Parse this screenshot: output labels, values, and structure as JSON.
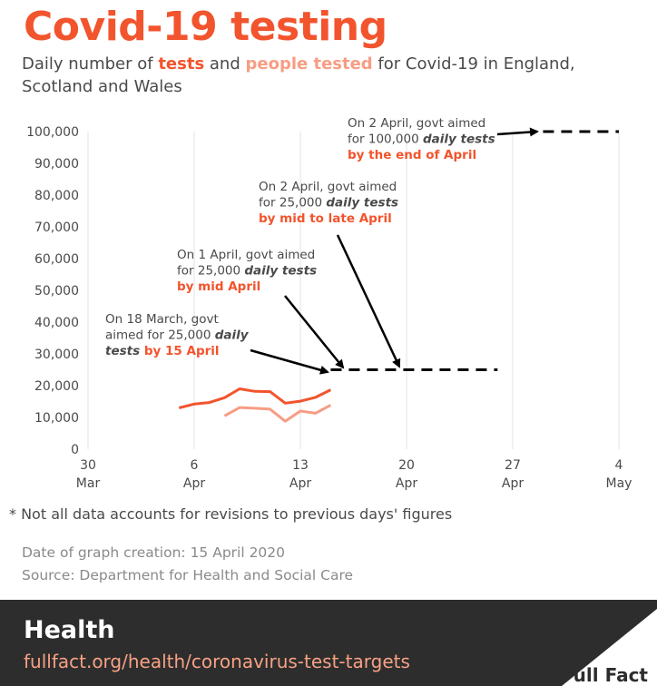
{
  "header": {
    "title": "Covid-19 testing",
    "subtitle_pre": "Daily number of ",
    "subtitle_tests": "tests",
    "subtitle_mid": " and ",
    "subtitle_people": "people tested",
    "subtitle_post": " for Covid-19 in England, Scotland and Wales"
  },
  "colors": {
    "tests": "#f2542d",
    "people_tested": "#f79d84",
    "target": "#000000",
    "footer_bg": "#2d2d2d",
    "url": "#f7a184"
  },
  "chart_data": {
    "type": "line",
    "title": "Covid-19 testing",
    "ylim": [
      0,
      100000
    ],
    "yticks": [
      0,
      10000,
      20000,
      30000,
      40000,
      50000,
      60000,
      70000,
      80000,
      90000,
      100000
    ],
    "ytick_labels": [
      "0",
      "10,000",
      "20,000",
      "30,000",
      "40,000",
      "50,000",
      "60,000",
      "70,000",
      "80,000",
      "90,000",
      "100,000"
    ],
    "xlim": [
      "2020-03-30",
      "2020-05-04"
    ],
    "xticks": [
      {
        "date": "2020-03-30",
        "line1": "30",
        "line2": "Mar"
      },
      {
        "date": "2020-04-06",
        "line1": "6",
        "line2": "Apr"
      },
      {
        "date": "2020-04-13",
        "line1": "13",
        "line2": "Apr"
      },
      {
        "date": "2020-04-20",
        "line1": "20",
        "line2": "Apr"
      },
      {
        "date": "2020-04-27",
        "line1": "27",
        "line2": "Apr"
      },
      {
        "date": "2020-05-04",
        "line1": "4",
        "line2": "May"
      }
    ],
    "grid": "vertical",
    "series": [
      {
        "name": "tests",
        "x": [
          "2020-04-05",
          "2020-04-06",
          "2020-04-07",
          "2020-04-08",
          "2020-04-09",
          "2020-04-10",
          "2020-04-11",
          "2020-04-12",
          "2020-04-13",
          "2020-04-14",
          "2020-04-15"
        ],
        "values": [
          13000,
          14200,
          14700,
          16200,
          19000,
          18200,
          18100,
          14500,
          15100,
          16300,
          18700
        ]
      },
      {
        "name": "people tested",
        "x": [
          "2020-04-08",
          "2020-04-09",
          "2020-04-10",
          "2020-04-11",
          "2020-04-12",
          "2020-04-13",
          "2020-04-14",
          "2020-04-15"
        ],
        "values": [
          10500,
          13100,
          12900,
          12600,
          8800,
          12000,
          11300,
          13900
        ]
      }
    ],
    "targets": [
      {
        "start": "2020-04-15",
        "end": "2020-04-26",
        "value": 25000
      },
      {
        "start": "2020-04-29",
        "end": "2020-05-04",
        "value": 100000
      }
    ],
    "annotations": [
      {
        "plain": [
          "On 18 March, govt",
          "aimed for 25,000 "
        ],
        "emph_bold_italic": "daily",
        "line3_bi": "tests",
        "highlight": " by 15 April"
      },
      {
        "plain": [
          "On 1 April, govt aimed",
          "for 25,000 "
        ],
        "emph_bold_italic": "daily tests",
        "highlight": "by mid April"
      },
      {
        "plain": [
          "On 2 April, govt aimed",
          "for 25,000 "
        ],
        "emph_bold_italic": "daily tests",
        "highlight": "by mid to late April"
      },
      {
        "plain": [
          "On 2 April, govt aimed",
          "for 100,000 "
        ],
        "emph_bold_italic": "daily tests",
        "highlight": "by the end of April"
      }
    ]
  },
  "footnote": "*  Not all data accounts for revisions to previous days' figures",
  "meta": {
    "created": "Date of graph creation: 15 April 2020",
    "source": "Source: Department for Health and Social Care"
  },
  "footer": {
    "section": "Health",
    "url": "fullfact.org/health/coronavirus-test-targets",
    "brand": "Full Fact"
  }
}
